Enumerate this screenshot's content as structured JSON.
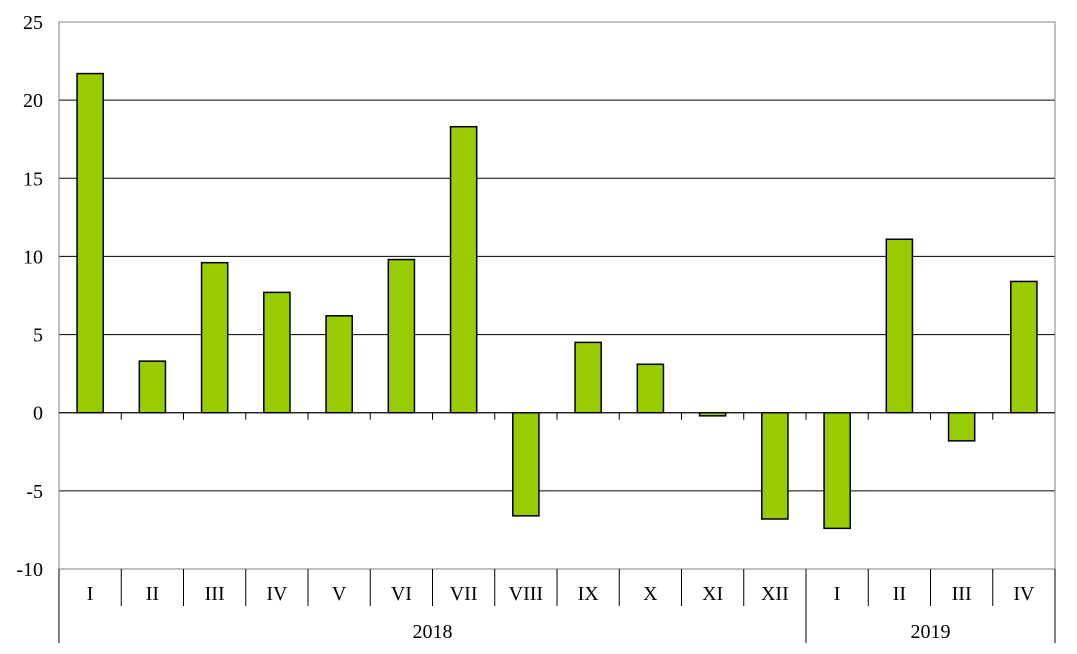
{
  "chart_data": {
    "type": "bar",
    "title": "",
    "xlabel": "",
    "ylabel": "",
    "ylim": [
      -10,
      25
    ],
    "yticks": [
      -10,
      -5,
      0,
      5,
      10,
      15,
      20,
      25
    ],
    "grid": true,
    "legend": "none",
    "categories": [
      "I",
      "II",
      "III",
      "IV",
      "V",
      "VI",
      "VII",
      "VIII",
      "IX",
      "X",
      "XI",
      "XII",
      "I",
      "II",
      "III",
      "IV"
    ],
    "groups": [
      {
        "label": "2018",
        "count": 12
      },
      {
        "label": "2019",
        "count": 4
      }
    ],
    "series": [
      {
        "values": [
          21.7,
          3.3,
          9.6,
          7.7,
          6.2,
          9.8,
          18.3,
          -6.6,
          4.5,
          3.1,
          -0.2,
          -6.8,
          -7.4,
          11.1,
          -1.8,
          8.4
        ]
      }
    ],
    "colors": {
      "bar_fill": "#99cc00",
      "bar_stroke": "#000000",
      "grid": "#000000",
      "frame": "#808080"
    }
  }
}
